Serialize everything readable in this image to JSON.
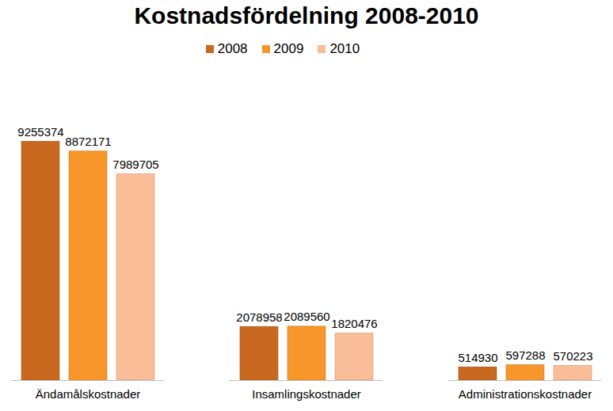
{
  "chart_data": {
    "type": "bar",
    "title": "Kostnadsfördelning 2008-2010",
    "categories": [
      "Ändamålskostnader",
      "Insamlingskostnader",
      "Administrationskostnader"
    ],
    "series": [
      {
        "name": "2008",
        "color": "#c8691f",
        "values": [
          9255374,
          2078958,
          514930
        ]
      },
      {
        "name": "2009",
        "color": "#f7962a",
        "values": [
          8872171,
          2089560,
          597288
        ]
      },
      {
        "name": "2010",
        "color": "#f9bd98",
        "values": [
          7989705,
          1820476,
          570223
        ]
      }
    ],
    "ylim": [
      0,
      10000000
    ],
    "legend": "top",
    "data_labels": true,
    "tick_labels": "x",
    "grid": false
  }
}
